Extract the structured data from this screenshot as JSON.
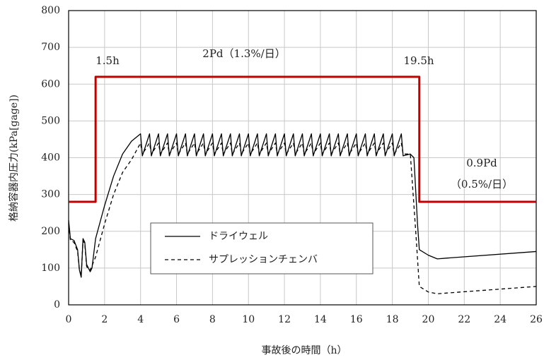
{
  "chart_data": {
    "type": "line",
    "xlabel": "事故後の時間（h）",
    "ylabel": "格納容器内圧力(kPa[gage])",
    "xlim": [
      0,
      26
    ],
    "xticks": [
      0,
      2,
      4,
      6,
      8,
      10,
      12,
      14,
      16,
      18,
      20,
      22,
      24,
      26
    ],
    "ylim": [
      0,
      800
    ],
    "yticks": [
      0,
      100,
      200,
      300,
      400,
      500,
      600,
      700,
      800
    ],
    "grid": true,
    "annotation_color": "#c00000",
    "annotations": [
      "1.5h",
      "2Pd（1.3%/日）",
      "19.5h",
      "0.9Pd",
      "（0.5%/日）"
    ],
    "series": [
      {
        "color": "#c00000",
        "width": 3,
        "x": [
          0,
          1.5,
          1.5,
          19.5,
          19.5,
          26
        ],
        "values": [
          280,
          280,
          620,
          620,
          280,
          280
        ]
      },
      {
        "name": "ドライウェル",
        "color": "#000000",
        "width": 1.3,
        "x": [
          0,
          0.1,
          0.3,
          0.5,
          0.6,
          0.7,
          0.8,
          0.9,
          1.0,
          1.1,
          1.2,
          1.3,
          1.5,
          2,
          2.5,
          3,
          3.5,
          4,
          4.1,
          4.5,
          4.6,
          5,
          5.1,
          5.5,
          5.6,
          6,
          6.1,
          6.5,
          6.6,
          7,
          7.1,
          7.5,
          7.6,
          8,
          8.1,
          8.5,
          8.6,
          9,
          9.1,
          9.5,
          9.6,
          10,
          10.1,
          10.5,
          10.6,
          11,
          11.1,
          11.5,
          11.6,
          12,
          12.1,
          12.5,
          12.6,
          13,
          13.1,
          13.5,
          13.6,
          14,
          14.1,
          14.5,
          14.6,
          15,
          15.1,
          15.5,
          15.6,
          16,
          16.1,
          16.5,
          16.6,
          17,
          17.1,
          17.5,
          17.6,
          18,
          18.1,
          18.5,
          18.6,
          19,
          19.2,
          19.4,
          19.5,
          20,
          20.5,
          21,
          26
        ],
        "values": [
          230,
          180,
          175,
          150,
          95,
          75,
          180,
          170,
          110,
          100,
          90,
          100,
          180,
          270,
          350,
          410,
          445,
          465,
          405,
          465,
          405,
          465,
          405,
          465,
          405,
          465,
          405,
          465,
          405,
          465,
          405,
          465,
          405,
          465,
          405,
          465,
          405,
          465,
          405,
          465,
          405,
          465,
          405,
          465,
          405,
          465,
          405,
          465,
          405,
          465,
          405,
          465,
          405,
          465,
          405,
          465,
          405,
          465,
          405,
          465,
          405,
          465,
          405,
          465,
          405,
          465,
          405,
          465,
          405,
          465,
          405,
          465,
          405,
          465,
          405,
          465,
          405,
          410,
          400,
          220,
          150,
          135,
          125,
          127,
          145
        ]
      },
      {
        "name": "サプレッションチェンバ",
        "color": "#000000",
        "width": 1.3,
        "dashed": true,
        "x": [
          0,
          0.1,
          0.3,
          0.5,
          0.6,
          0.7,
          0.8,
          0.9,
          1.0,
          1.1,
          1.2,
          1.5,
          2,
          2.5,
          3,
          3.5,
          4,
          4.1,
          4.5,
          4.6,
          5,
          5.1,
          5.5,
          5.6,
          6,
          6.1,
          6.5,
          6.6,
          7,
          7.1,
          7.5,
          7.6,
          8,
          8.1,
          8.5,
          8.6,
          9,
          9.1,
          9.5,
          9.6,
          10,
          10.1,
          10.5,
          10.6,
          11,
          11.1,
          11.5,
          11.6,
          12,
          12.1,
          12.5,
          12.6,
          13,
          13.1,
          13.5,
          13.6,
          14,
          14.1,
          14.5,
          14.6,
          15,
          15.1,
          15.5,
          15.6,
          16,
          16.1,
          16.5,
          16.6,
          17,
          17.1,
          17.5,
          17.6,
          18,
          18.1,
          18.5,
          18.6,
          19,
          19.3,
          19.5,
          20,
          20.5,
          21,
          26
        ],
        "values": [
          220,
          175,
          170,
          145,
          95,
          80,
          175,
          165,
          105,
          95,
          95,
          130,
          220,
          300,
          360,
          395,
          440,
          410,
          440,
          410,
          440,
          410,
          440,
          410,
          440,
          410,
          440,
          410,
          440,
          410,
          440,
          410,
          440,
          410,
          440,
          410,
          440,
          410,
          440,
          410,
          440,
          410,
          440,
          410,
          440,
          410,
          440,
          410,
          440,
          410,
          440,
          410,
          440,
          410,
          440,
          410,
          440,
          410,
          440,
          410,
          440,
          410,
          440,
          410,
          440,
          410,
          440,
          410,
          440,
          410,
          440,
          410,
          440,
          410,
          440,
          410,
          410,
          200,
          50,
          35,
          30,
          32,
          50
        ]
      }
    ]
  }
}
